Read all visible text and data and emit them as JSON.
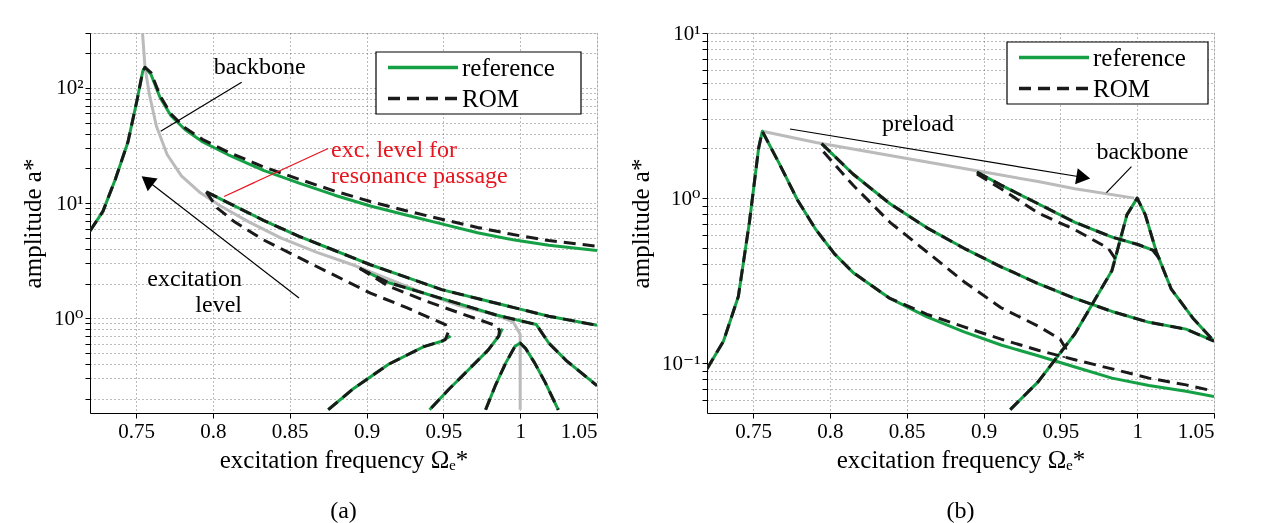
{
  "chart_data": [
    {
      "type": "line",
      "xlabel": "excitation frequency Ωₑ*",
      "ylabel": "amplitude a*",
      "xlim": [
        0.72,
        1.05
      ],
      "xticks": [
        0.75,
        0.8,
        0.85,
        0.9,
        0.95,
        1,
        1.05
      ],
      "ylim": [
        0.15,
        300
      ],
      "yticks": [
        {
          "value": 0.2,
          "label": null
        },
        {
          "value": 0.3,
          "label": null
        },
        {
          "value": 0.4,
          "label": null
        },
        {
          "value": 0.5,
          "label": null
        },
        {
          "value": 0.6,
          "label": null
        },
        {
          "value": 0.7,
          "label": null
        },
        {
          "value": 0.8,
          "label": null
        },
        {
          "value": 0.9,
          "label": null
        },
        {
          "value": 1,
          "label": "10⁰"
        },
        {
          "value": 2,
          "label": null
        },
        {
          "value": 3,
          "label": null
        },
        {
          "value": 4,
          "label": null
        },
        {
          "value": 5,
          "label": null
        },
        {
          "value": 6,
          "label": null
        },
        {
          "value": 7,
          "label": null
        },
        {
          "value": 8,
          "label": null
        },
        {
          "value": 9,
          "label": null
        },
        {
          "value": 10,
          "label": "10¹"
        },
        {
          "value": 20,
          "label": null
        },
        {
          "value": 30,
          "label": null
        },
        {
          "value": 40,
          "label": null
        },
        {
          "value": 50,
          "label": null
        },
        {
          "value": 60,
          "label": null
        },
        {
          "value": 70,
          "label": null
        },
        {
          "value": 80,
          "label": null
        },
        {
          "value": 90,
          "label": null
        },
        {
          "value": 100,
          "label": "10²"
        },
        {
          "value": 200,
          "label": null
        },
        {
          "value": 300,
          "label": null
        }
      ],
      "log": "y",
      "grid": true,
      "legend": "top right",
      "series": [
        {
          "color": "#bbbbbb",
          "line_style": "solid",
          "x": [
            0.7542,
            0.7558,
            0.7586,
            0.7632,
            0.7702,
            0.7795,
            0.7911,
            0.805,
            0.8236,
            0.8445,
            0.8677,
            0.8909,
            0.9141,
            0.9373,
            0.9605,
            0.9838,
            0.9954,
            1.0,
            1.0
          ],
          "values": [
            297,
            151,
            88.6,
            46.7,
            26.4,
            17.2,
            12.5,
            9.42,
            6.83,
            4.96,
            3.73,
            2.91,
            2.19,
            1.65,
            1.28,
            1.07,
            0.93,
            0.726,
            0.16
          ]
        },
        {
          "name": "reference",
          "color": "#16a045",
          "line_style": "solid",
          "x": [
            0.72,
            0.7284,
            0.7365,
            0.7447,
            0.7505,
            0.7544,
            0.7558,
            0.7597,
            0.7656,
            0.7725,
            0.7818,
            0.7934,
            0.8097,
            0.8329,
            0.8561,
            0.8793,
            0.9025,
            0.9257,
            0.9489,
            0.9722,
            0.9954,
            1.0186,
            1.05
          ],
          "values": [
            5.72,
            8.46,
            16.1,
            33.9,
            76.9,
            141,
            151,
            131,
            82.5,
            57.8,
            43.5,
            33.9,
            26.4,
            19.2,
            14.9,
            11.7,
            9.42,
            7.88,
            6.59,
            5.52,
            4.79,
            4.3,
            3.87
          ]
        },
        {
          "color": "#16a045",
          "line_style": "solid",
          "x": [
            0.7957,
            0.8097,
            0.8329,
            0.8561,
            0.8793,
            0.9025,
            0.9257,
            0.9489,
            0.9722,
            0.9954,
            1.0186,
            1.05
          ],
          "values": [
            12.5,
            10.1,
            7.08,
            5.14,
            3.87,
            2.91,
            2.27,
            1.77,
            1.48,
            1.24,
            1.04,
            0.867
          ]
        },
        {
          "color": "#16a045",
          "line_style": "solid",
          "x": [
            0.8955,
            0.9141,
            0.9373,
            0.9605,
            0.9838,
            1.0105,
            1.0186,
            1.0302,
            1.05
          ],
          "values": [
            2.71,
            2.04,
            1.65,
            1.33,
            1.07,
            0.88,
            0.608,
            0.426,
            0.259
          ]
        },
        {
          "color": "#16a045",
          "line_style": "solid",
          "x": [
            0.9775,
            0.9838,
            0.9907,
            0.9965,
            1.0,
            1.0035,
            1.0093,
            1.0162,
            1.0248
          ],
          "values": [
            0.16,
            0.259,
            0.411,
            0.566,
            0.608,
            0.546,
            0.411,
            0.278,
            0.16
          ]
        },
        {
          "color": "#16a045",
          "line_style": "solid",
          "x": [
            0.875,
            0.8909,
            0.9141,
            0.9373,
            0.9489,
            0.9547
          ],
          "values": [
            0.16,
            0.241,
            0.396,
            0.566,
            0.63,
            0.7
          ]
        },
        {
          "color": "#16a045",
          "line_style": "solid",
          "x": [
            0.941,
            0.9536,
            0.9675,
            0.9791,
            0.9861,
            0.9884
          ],
          "values": [
            0.16,
            0.241,
            0.369,
            0.527,
            0.7,
            0.81
          ]
        },
        {
          "name": "ROM",
          "color": "#1a1a1a",
          "line_style": "dashed",
          "x": [
            0.72,
            0.7284,
            0.7365,
            0.7447,
            0.7505,
            0.7544,
            0.7558,
            0.7597,
            0.7656,
            0.7725,
            0.7818,
            0.7934,
            0.8097,
            0.8329,
            0.8561,
            0.8793,
            0.9025,
            0.9257,
            0.9489,
            0.9722,
            0.9954,
            1.0186,
            1.05
          ],
          "values": [
            5.72,
            8.46,
            16.1,
            33.9,
            76.9,
            141,
            151,
            136,
            85.5,
            59.8,
            45.1,
            35.6,
            27.8,
            20.6,
            16.1,
            12.7,
            10.3,
            8.58,
            7.23,
            6.14,
            5.32,
            4.72,
            4.21
          ]
        },
        {
          "color": "#1a1a1a",
          "line_style": "dashed",
          "x": [
            0.7957,
            0.8097,
            0.8329,
            0.8561,
            0.8793,
            0.9025,
            0.9257,
            0.9489,
            0.9722,
            0.9954,
            1.0186,
            1.05
          ],
          "values": [
            12.5,
            10.1,
            7.08,
            5.14,
            3.87,
            2.91,
            2.27,
            1.77,
            1.48,
            1.24,
            1.04,
            0.867
          ]
        },
        {
          "color": "#1a1a1a",
          "line_style": "dashed",
          "x": [
            0.7957,
            0.8027,
            0.8143,
            0.8329,
            0.8561,
            0.8793,
            0.9025,
            0.9257,
            0.9443,
            0.9513,
            0.9531,
            0.9513,
            0.9489,
            0.9373,
            0.9141,
            0.8909,
            0.875
          ],
          "values": [
            12.5,
            9.09,
            6.83,
            4.79,
            3.35,
            2.35,
            1.65,
            1.24,
            0.965,
            0.88,
            0.752,
            0.652,
            0.63,
            0.566,
            0.396,
            0.241,
            0.16
          ]
        },
        {
          "color": "#1a1a1a",
          "line_style": "dashed",
          "x": [
            0.8955,
            0.9141,
            0.9373,
            0.9605,
            0.9791,
            0.9849,
            0.9865,
            0.9861,
            0.9791,
            0.9675,
            0.9536,
            0.941
          ],
          "values": [
            2.71,
            1.9,
            1.43,
            1.11,
            0.91,
            0.855,
            0.78,
            0.7,
            0.527,
            0.369,
            0.241,
            0.16
          ]
        },
        {
          "color": "#1a1a1a",
          "line_style": "dashed",
          "x": [
            0.9775,
            0.9838,
            0.9907,
            0.9965,
            1.0,
            1.0035,
            1.0093,
            1.0162,
            1.0248
          ],
          "values": [
            0.16,
            0.259,
            0.411,
            0.566,
            0.608,
            0.546,
            0.411,
            0.278,
            0.16
          ]
        },
        {
          "color": "#1a1a1a",
          "line_style": "dashed",
          "x": [
            0.8955,
            0.9141,
            0.9373,
            0.9605,
            0.9838,
            1.0105,
            1.0186,
            1.0302,
            1.05
          ],
          "values": [
            2.71,
            2.04,
            1.65,
            1.33,
            1.07,
            0.88,
            0.608,
            0.426,
            0.259
          ]
        }
      ],
      "annotations": [
        {
          "text": "backbone",
          "x": 0.766,
          "y": 42
        },
        {
          "text": "exc. level for\nresonance passage",
          "x": 0.8073,
          "y": 11.4
        },
        "excitation\nlevel",
        "(a)"
      ]
    },
    {
      "type": "line",
      "xlabel": "excitation frequency Ωₑ*",
      "ylabel": "amplitude a*",
      "xlim": [
        0.72,
        1.05
      ],
      "xticks": [
        0.75,
        0.8,
        0.85,
        0.9,
        0.95,
        1,
        1.05
      ],
      "ylim": [
        0.05,
        10
      ],
      "yticks": [
        {
          "value": 0.06,
          "label": null
        },
        {
          "value": 0.07,
          "label": null
        },
        {
          "value": 0.08,
          "label": null
        },
        {
          "value": 0.09,
          "label": null
        },
        {
          "value": 0.1,
          "label": "10⁻¹"
        },
        {
          "value": 0.2,
          "label": null
        },
        {
          "value": 0.3,
          "label": null
        },
        {
          "value": 0.4,
          "label": null
        },
        {
          "value": 0.5,
          "label": null
        },
        {
          "value": 0.6,
          "label": null
        },
        {
          "value": 0.7,
          "label": null
        },
        {
          "value": 0.8,
          "label": null
        },
        {
          "value": 0.9,
          "label": null
        },
        {
          "value": 1,
          "label": "10⁰"
        },
        {
          "value": 2,
          "label": null
        },
        {
          "value": 3,
          "label": null
        },
        {
          "value": 4,
          "label": null
        },
        {
          "value": 5,
          "label": null
        },
        {
          "value": 6,
          "label": null
        },
        {
          "value": 7,
          "label": null
        },
        {
          "value": 8,
          "label": null
        },
        {
          "value": 9,
          "label": null
        },
        {
          "value": 10,
          "label": "10¹"
        }
      ],
      "log": "y",
      "grid": true,
      "legend": "top right",
      "series": [
        {
          "color": "#bbbbbb",
          "line_style": "solid",
          "x": [
            0.756,
            0.7909,
            0.8391,
            0.8873,
            0.9355,
            0.9595,
            0.9981
          ],
          "values": [
            2.54,
            2.17,
            1.81,
            1.51,
            1.26,
            1.14,
            1.0
          ]
        },
        {
          "name": "reference",
          "color": "#16a045",
          "line_style": "solid",
          "x": [
            0.72,
            0.7307,
            0.7404,
            0.7476,
            0.7536,
            0.756,
            0.7669,
            0.7789,
            0.7909,
            0.803,
            0.815,
            0.8391,
            0.8632,
            0.8873,
            0.9114,
            0.9355,
            0.9595,
            0.9836,
            1.0077,
            1.0318,
            1.05
          ],
          "values": [
            0.0925,
            0.136,
            0.254,
            0.714,
            2.01,
            2.54,
            1.63,
            0.974,
            0.644,
            0.46,
            0.355,
            0.247,
            0.191,
            0.155,
            0.129,
            0.111,
            0.0949,
            0.0813,
            0.0733,
            0.0678,
            0.0628
          ]
        },
        {
          "color": "#16a045",
          "line_style": "solid",
          "x": [
            0.7946,
            0.815,
            0.8391,
            0.8632,
            0.8873,
            0.9114,
            0.9355,
            0.9595,
            0.9836,
            1.0077,
            1.0318,
            1.05
          ],
          "values": [
            2.14,
            1.4,
            0.925,
            0.661,
            0.497,
            0.384,
            0.304,
            0.247,
            0.206,
            0.177,
            0.161,
            0.136
          ]
        },
        {
          "color": "#16a045",
          "line_style": "solid",
          "x": [
            0.8957,
            0.9114,
            0.9355,
            0.9595,
            0.9836,
            1.0005,
            1.0101,
            1.0149
          ],
          "values": [
            1.44,
            1.2,
            0.925,
            0.714,
            0.581,
            0.524,
            0.485,
            0.426
          ]
        },
        {
          "color": "#16a045",
          "line_style": "solid",
          "x": [
            0.9174,
            0.9355,
            0.9595,
            0.9836,
            0.9933,
            1.0,
            1.0053,
            1.0125,
            1.0222,
            1.0366,
            1.05
          ],
          "values": [
            0.0524,
            0.0772,
            0.151,
            0.365,
            0.792,
            1.0,
            0.792,
            0.472,
            0.281,
            0.186,
            0.136
          ]
        },
        {
          "name": "ROM",
          "color": "#1a1a1a",
          "line_style": "dashed",
          "x": [
            0.72,
            0.7307,
            0.7404,
            0.7476,
            0.7536,
            0.756,
            0.7669,
            0.7789,
            0.7909,
            0.803,
            0.815,
            0.8391,
            0.8632,
            0.8873,
            0.9114,
            0.9355,
            0.9595,
            0.9836,
            1.0077,
            1.0318,
            1.05
          ],
          "values": [
            0.0925,
            0.136,
            0.254,
            0.714,
            2.01,
            2.54,
            1.63,
            0.974,
            0.644,
            0.46,
            0.355,
            0.247,
            0.198,
            0.166,
            0.14,
            0.12,
            0.105,
            0.0925,
            0.0813,
            0.074,
            0.0678
          ]
        },
        {
          "color": "#1a1a1a",
          "line_style": "dashed",
          "x": [
            0.7946,
            0.815,
            0.8391,
            0.8632,
            0.8873,
            0.9114,
            0.9355,
            0.9595,
            0.9836,
            1.0077,
            1.0318,
            1.05
          ],
          "values": [
            2.14,
            1.4,
            0.925,
            0.661,
            0.497,
            0.384,
            0.304,
            0.247,
            0.206,
            0.177,
            0.161,
            0.136
          ]
        },
        {
          "color": "#1a1a1a",
          "line_style": "dashed",
          "x": [
            0.8957,
            0.9114,
            0.9355,
            0.9595,
            0.9812,
            0.986,
            0.9848
          ],
          "values": [
            1.4,
            1.14,
            0.813,
            0.644,
            0.497,
            0.426,
            0.39
          ]
        },
        {
          "color": "#1a1a1a",
          "line_style": "dashed",
          "x": [
            0.8957,
            0.9114,
            0.9355,
            0.9595,
            0.9836,
            1.0005,
            1.0101,
            1.0149
          ],
          "values": [
            1.44,
            1.2,
            0.925,
            0.714,
            0.581,
            0.524,
            0.485,
            0.426
          ]
        },
        {
          "color": "#1a1a1a",
          "line_style": "dashed",
          "x": [
            0.9174,
            0.9355,
            0.9595,
            0.9836,
            0.9933,
            1.0,
            1.0053,
            1.0125,
            1.0222,
            1.0366,
            1.05
          ],
          "values": [
            0.0524,
            0.0772,
            0.151,
            0.365,
            0.792,
            1.0,
            0.792,
            0.472,
            0.281,
            0.186,
            0.136
          ]
        },
        {
          "color": "#1a1a1a",
          "line_style": "dashed",
          "x": [
            0.7958,
            0.815,
            0.8391,
            0.8632,
            0.8873,
            0.9114,
            0.9355,
            0.9499,
            0.9535,
            0.9523
          ],
          "values": [
            1.91,
            1.2,
            0.714,
            0.472,
            0.312,
            0.217,
            0.168,
            0.14,
            0.123,
            0.108
          ]
        }
      ],
      "annotations": [
        "preload",
        {
          "text": "backbone",
          "x": 0.98,
          "y": 1.08
        },
        "(b)"
      ]
    }
  ]
}
